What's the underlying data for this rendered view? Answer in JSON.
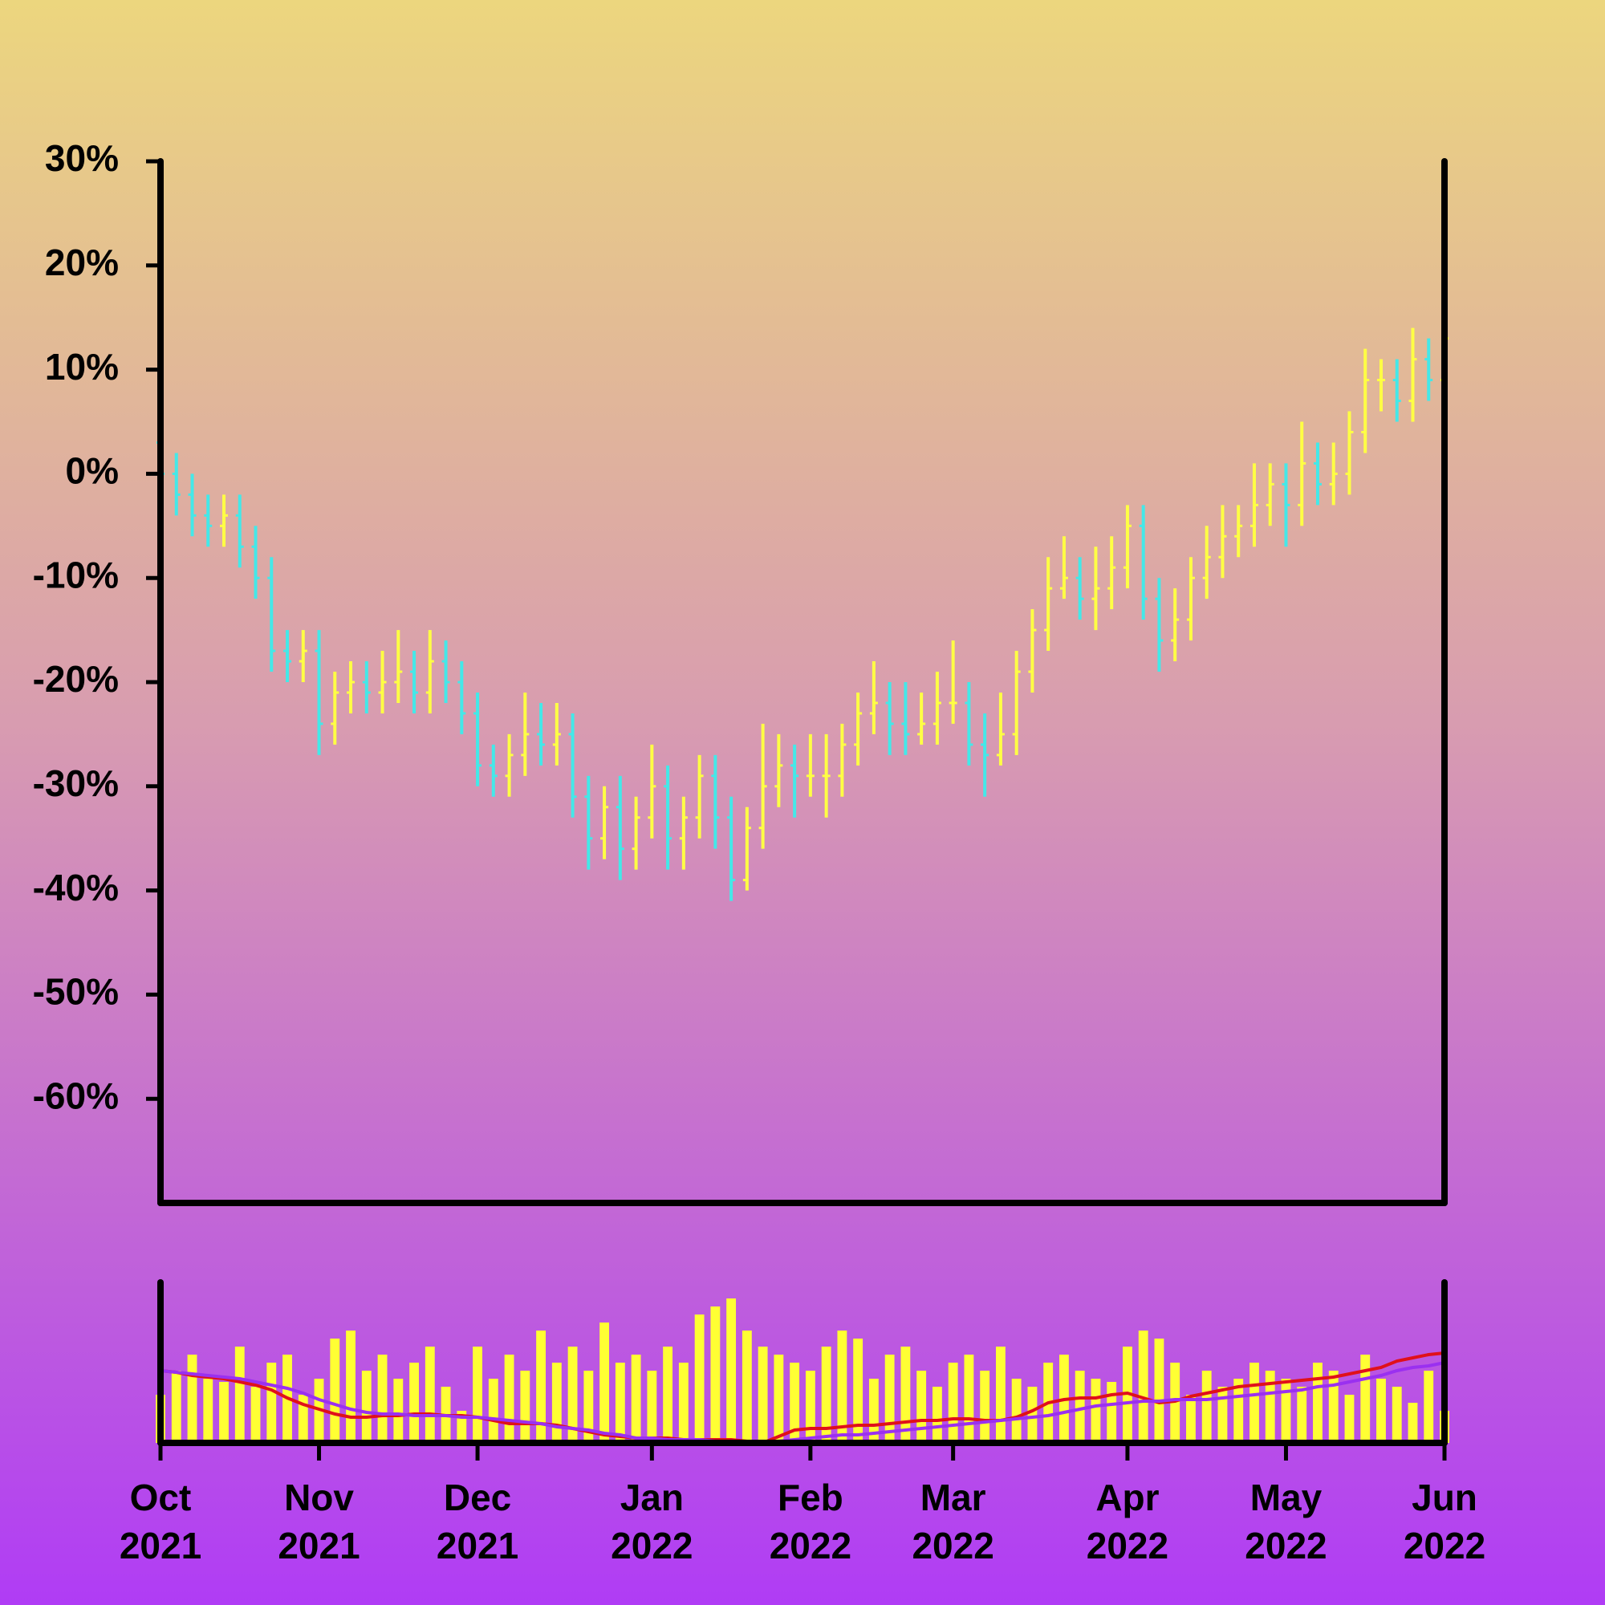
{
  "chart_data": {
    "type": "ohlc",
    "categories": [
      "Oct 2021",
      null,
      null,
      null,
      null,
      null,
      null,
      null,
      null,
      null,
      "Nov 2021",
      null,
      null,
      null,
      null,
      null,
      null,
      null,
      null,
      null,
      "Dec 2021",
      null,
      null,
      null,
      null,
      null,
      null,
      null,
      null,
      null,
      null,
      "Jan 2022",
      null,
      null,
      null,
      null,
      null,
      null,
      null,
      null,
      null,
      "Feb 2022",
      null,
      null,
      null,
      null,
      null,
      null,
      null,
      null,
      "Mar 2022",
      null,
      null,
      null,
      null,
      null,
      null,
      null,
      null,
      null,
      null,
      "Apr 2022",
      null,
      null,
      null,
      null,
      null,
      null,
      null,
      null,
      null,
      "May 2022",
      null,
      null,
      null,
      null,
      null,
      null,
      null,
      null,
      null,
      "Jun 2022"
    ],
    "ohlc": [
      [
        3,
        4,
        -2,
        0
      ],
      [
        0,
        2,
        -4,
        -2
      ],
      [
        -2,
        0,
        -6,
        -4
      ],
      [
        -4,
        -2,
        -7,
        -5
      ],
      [
        -5,
        -2,
        -7,
        -4
      ],
      [
        -4,
        -2,
        -9,
        -7
      ],
      [
        -7,
        -5,
        -12,
        -10
      ],
      [
        -10,
        -8,
        -19,
        -17
      ],
      [
        -17,
        -15,
        -20,
        -18
      ],
      [
        -18,
        -15,
        -20,
        -17
      ],
      [
        -17,
        -15,
        -27,
        -24
      ],
      [
        -24,
        -19,
        -26,
        -21
      ],
      [
        -21,
        -18,
        -23,
        -20
      ],
      [
        -20,
        -18,
        -23,
        -21
      ],
      [
        -21,
        -17,
        -23,
        -20
      ],
      [
        -20,
        -15,
        -22,
        -19
      ],
      [
        -19,
        -17,
        -23,
        -21
      ],
      [
        -21,
        -15,
        -23,
        -18
      ],
      [
        -18,
        -16,
        -22,
        -20
      ],
      [
        -20,
        -18,
        -25,
        -23
      ],
      [
        -23,
        -21,
        -30,
        -28
      ],
      [
        -28,
        -26,
        -31,
        -29
      ],
      [
        -29,
        -25,
        -31,
        -27
      ],
      [
        -27,
        -21,
        -29,
        -25
      ],
      [
        -25,
        -22,
        -28,
        -26
      ],
      [
        -26,
        -22,
        -28,
        -25
      ],
      [
        -25,
        -23,
        -33,
        -31
      ],
      [
        -31,
        -29,
        -38,
        -35
      ],
      [
        -35,
        -30,
        -37,
        -32
      ],
      [
        -32,
        -29,
        -39,
        -36
      ],
      [
        -36,
        -31,
        -38,
        -33
      ],
      [
        -33,
        -26,
        -35,
        -30
      ],
      [
        -30,
        -28,
        -38,
        -35
      ],
      [
        -35,
        -31,
        -38,
        -33
      ],
      [
        -33,
        -27,
        -35,
        -29
      ],
      [
        -29,
        -27,
        -36,
        -33
      ],
      [
        -33,
        -31,
        -41,
        -39
      ],
      [
        -39,
        -32,
        -40,
        -34
      ],
      [
        -34,
        -24,
        -36,
        -30
      ],
      [
        -30,
        -25,
        -32,
        -28
      ],
      [
        -28,
        -26,
        -33,
        -29
      ],
      [
        -29,
        -25,
        -31,
        -29
      ],
      [
        -29,
        -25,
        -33,
        -29
      ],
      [
        -29,
        -24,
        -31,
        -26
      ],
      [
        -26,
        -21,
        -28,
        -23
      ],
      [
        -23,
        -18,
        -25,
        -22
      ],
      [
        -22,
        -20,
        -27,
        -24
      ],
      [
        -24,
        -20,
        -27,
        -25
      ],
      [
        -25,
        -21,
        -26,
        -24
      ],
      [
        -24,
        -19,
        -26,
        -22
      ],
      [
        -22,
        -16,
        -24,
        -22
      ],
      [
        -22,
        -20,
        -28,
        -26
      ],
      [
        -26,
        -23,
        -31,
        -27
      ],
      [
        -27,
        -21,
        -28,
        -25
      ],
      [
        -25,
        -17,
        -27,
        -19
      ],
      [
        -19,
        -13,
        -21,
        -15
      ],
      [
        -15,
        -8,
        -17,
        -11
      ],
      [
        -11,
        -6,
        -12,
        -10
      ],
      [
        -10,
        -8,
        -14,
        -12
      ],
      [
        -12,
        -7,
        -15,
        -11
      ],
      [
        -11,
        -6,
        -13,
        -9
      ],
      [
        -9,
        -3,
        -11,
        -5
      ],
      [
        -5,
        -3,
        -14,
        -12
      ],
      [
        -12,
        -10,
        -19,
        -16
      ],
      [
        -16,
        -11,
        -18,
        -14
      ],
      [
        -14,
        -8,
        -16,
        -10
      ],
      [
        -10,
        -5,
        -12,
        -8
      ],
      [
        -8,
        -3,
        -10,
        -6
      ],
      [
        -6,
        -3,
        -8,
        -5
      ],
      [
        -5,
        1,
        -7,
        -3
      ],
      [
        -3,
        1,
        -5,
        -1
      ],
      [
        -1,
        1,
        -7,
        -3
      ],
      [
        -3,
        5,
        -5,
        1
      ],
      [
        1,
        3,
        -3,
        -1
      ],
      [
        -1,
        3,
        -3,
        0
      ],
      [
        0,
        6,
        -2,
        4
      ],
      [
        4,
        12,
        2,
        9
      ],
      [
        9,
        11,
        6,
        9
      ],
      [
        9,
        11,
        5,
        7
      ],
      [
        7,
        14,
        5,
        11
      ],
      [
        11,
        13,
        7,
        9
      ],
      [
        9,
        15,
        7,
        13
      ]
    ],
    "up_color": "#ffff44",
    "down_color": "#44e8e8",
    "ylim": [
      -70,
      30
    ],
    "yticks": [
      {
        "value": -60,
        "label": "-60%"
      },
      {
        "value": -50,
        "label": "-50%"
      },
      {
        "value": -40,
        "label": "-40%"
      },
      {
        "value": -30,
        "label": "-30%"
      },
      {
        "value": -20,
        "label": "-20%"
      },
      {
        "value": -10,
        "label": "-10%"
      },
      {
        "value": 0,
        "label": "0%"
      },
      {
        "value": 10,
        "label": "10%"
      },
      {
        "value": 20,
        "label": "20%"
      },
      {
        "value": 30,
        "label": "30%"
      }
    ],
    "volume": {
      "color": "#ffff33",
      "ylim": [
        0,
        100
      ],
      "values": [
        30,
        45,
        55,
        40,
        38,
        60,
        35,
        50,
        55,
        30,
        40,
        65,
        70,
        45,
        55,
        40,
        50,
        60,
        35,
        20,
        60,
        40,
        55,
        45,
        70,
        50,
        60,
        45,
        75,
        50,
        55,
        45,
        60,
        50,
        80,
        85,
        90,
        70,
        60,
        55,
        50,
        45,
        60,
        70,
        65,
        40,
        55,
        60,
        45,
        35,
        50,
        55,
        45,
        60,
        40,
        35,
        50,
        55,
        45,
        40,
        38,
        60,
        70,
        65,
        50,
        30,
        45,
        35,
        40,
        50,
        45,
        40,
        35,
        50,
        45,
        30,
        55,
        40,
        35,
        25,
        45,
        20
      ]
    },
    "moving_averages": [
      {
        "color": "#e0101a",
        "values": [
          45,
          44,
          42,
          41,
          40,
          38,
          36,
          33,
          28,
          24,
          21,
          18,
          16,
          16,
          17,
          17,
          18,
          18,
          17,
          17,
          16,
          14,
          12,
          12,
          12,
          11,
          9,
          7,
          5,
          4,
          3,
          3,
          3,
          2,
          2,
          2,
          2,
          1,
          0,
          4,
          8,
          9,
          9,
          10,
          11,
          11,
          12,
          13,
          14,
          14,
          15,
          15,
          14,
          14,
          16,
          20,
          25,
          27,
          28,
          28,
          30,
          31,
          28,
          25,
          26,
          29,
          31,
          33,
          35,
          36,
          37,
          38,
          39,
          40,
          41,
          43,
          45,
          47,
          51,
          53,
          55,
          56
        ]
      },
      {
        "color": "#9a30f0",
        "values": [
          45,
          44,
          43,
          42,
          41,
          40,
          38,
          36,
          34,
          31,
          27,
          24,
          21,
          19,
          18,
          18,
          17,
          17,
          17,
          16,
          16,
          15,
          14,
          13,
          12,
          10,
          9,
          8,
          6,
          5,
          3,
          3,
          2,
          2,
          2,
          1,
          1,
          1,
          1,
          1,
          2,
          3,
          4,
          5,
          5,
          6,
          7,
          8,
          9,
          10,
          11,
          12,
          13,
          14,
          15,
          16,
          17,
          19,
          21,
          23,
          24,
          25,
          26,
          26,
          27,
          27,
          27,
          28,
          29,
          30,
          31,
          32,
          33,
          35,
          36,
          38,
          40,
          42,
          45,
          47,
          48,
          50
        ]
      }
    ]
  }
}
